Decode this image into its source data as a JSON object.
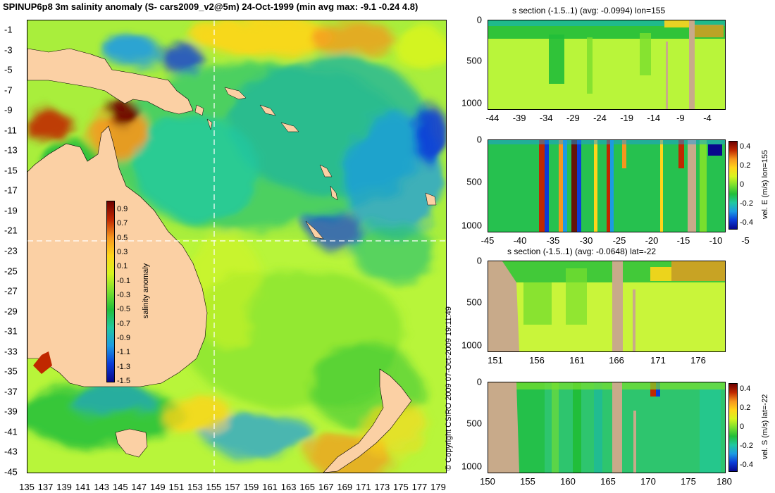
{
  "title": "SPINUP6p8 3m salinity anomaly (S- cars2009_v2@5m) 24-Oct-1999 (min avg max: -9.1 -0.24 4.8)",
  "copyright": "© Copyright CSIRO 2009   07-Oct-2009 19:11:49",
  "colors": {
    "land": "#fbd0a4",
    "section_land": "#c8aa8a",
    "ocean_base": "#a3ef40",
    "scale": [
      "#08088c",
      "#0a3cd8",
      "#1c9be2",
      "#20c8a0",
      "#21be3a",
      "#79df2e",
      "#d7f41e",
      "#ffd51a",
      "#f6961e",
      "#c02800",
      "#6e0000"
    ]
  },
  "map": {
    "lat_labels": [
      "-1",
      "-3",
      "-5",
      "-7",
      "-9",
      "-11",
      "-13",
      "-15",
      "-17",
      "-19",
      "-21",
      "-23",
      "-25",
      "-27",
      "-29",
      "-31",
      "-33",
      "-35",
      "-37",
      "-39",
      "-41",
      "-43",
      "-45"
    ],
    "lon_labels": [
      "135",
      "137",
      "139",
      "141",
      "143",
      "145",
      "147",
      "149",
      "151",
      "153",
      "155",
      "157",
      "159",
      "161",
      "163",
      "165",
      "167",
      "169",
      "171",
      "173",
      "175",
      "177",
      "179"
    ],
    "lat_range": [
      -45,
      0
    ],
    "lon_range": [
      135,
      180
    ],
    "section_lon": 155,
    "section_lat": -22
  },
  "colorbar": {
    "ticks": [
      "0.9",
      "0.7",
      "0.5",
      "0.3",
      "0.1",
      "-0.1",
      "-0.3",
      "-0.5",
      "-0.7",
      "-0.9",
      "-1.1",
      "-1.3",
      "-1.5"
    ],
    "label": "salinity anomaly"
  },
  "panels": [
    {
      "title": "s section (-1.5..1) (avg: -0.0994) lon=155",
      "yticks": [
        "0",
        "500",
        "1000"
      ],
      "xticks": [
        "-44",
        "-39",
        "-34",
        "-29",
        "-24",
        "-19",
        "-14",
        "-9",
        "-4"
      ],
      "colorbar": null
    },
    {
      "title": "",
      "yticks": [
        "0",
        "500",
        "1000"
      ],
      "xticks": [
        "-45",
        "-40",
        "-35",
        "-30",
        "-25",
        "-20",
        "-15",
        "-10",
        "-5"
      ],
      "colorbar": {
        "ticks": [
          "0.4",
          "0.2",
          "0",
          "-0.2",
          "-0.4"
        ],
        "label": "vel. E (m/s) lon=155"
      }
    },
    {
      "title": "s section (-1.5..1) (avg: -0.0648) lat=-22",
      "yticks": [
        "0",
        "500",
        "1000"
      ],
      "xticks": [
        "151",
        "156",
        "161",
        "166",
        "171",
        "176"
      ],
      "colorbar": null
    },
    {
      "title": "",
      "yticks": [
        "0",
        "500",
        "1000"
      ],
      "xticks": [
        "150",
        "155",
        "160",
        "165",
        "170",
        "175",
        "180"
      ],
      "colorbar": {
        "ticks": [
          "0.4",
          "0.2",
          "0",
          "-0.2",
          "-0.4"
        ],
        "label": "vel. S (m/s) lat=-22"
      }
    }
  ]
}
